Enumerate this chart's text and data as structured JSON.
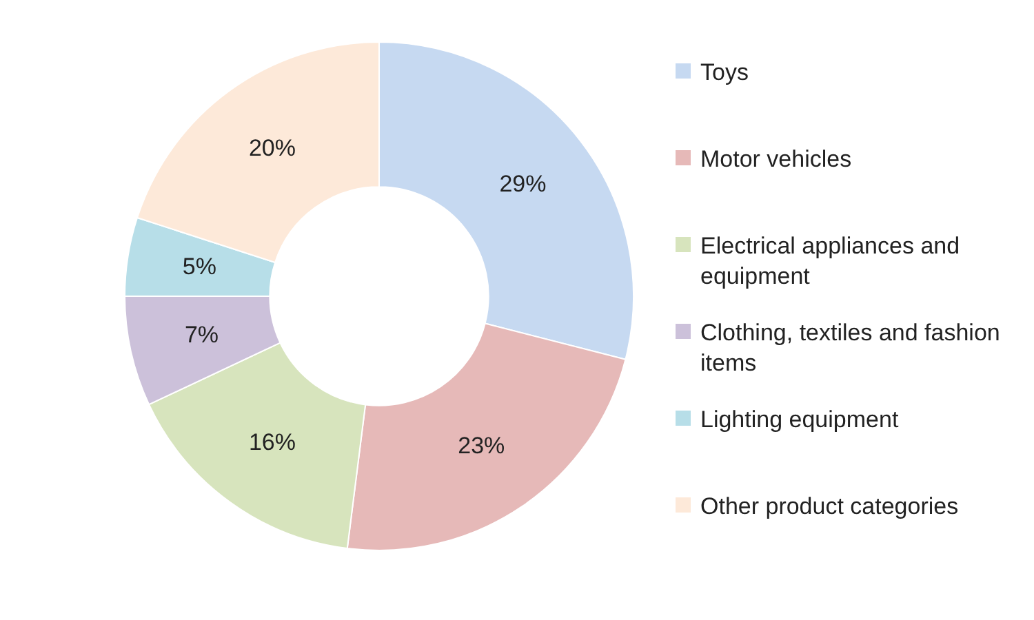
{
  "chart_data": {
    "type": "donut",
    "categories": [
      "Toys",
      "Motor vehicles",
      "Electrical appliances and equipment",
      "Clothing, textiles and fashion items",
      "Lighting equipment",
      "Other product categories"
    ],
    "values": [
      29,
      23,
      16,
      7,
      5,
      20
    ],
    "value_labels": [
      "29%",
      "23%",
      "16%",
      "7%",
      "5%",
      "20%"
    ],
    "colors": [
      "#c6d9f1",
      "#e6b9b8",
      "#d7e4bd",
      "#ccc1da",
      "#b7dee8",
      "#fde9d9"
    ],
    "legend": "right"
  }
}
